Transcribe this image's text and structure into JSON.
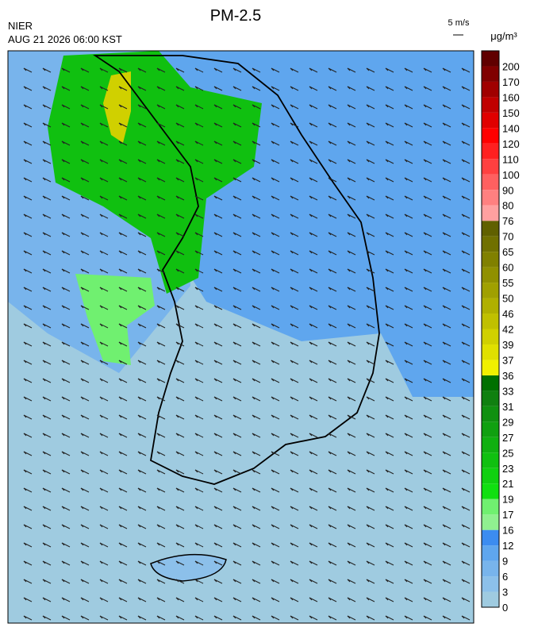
{
  "header": {
    "title": "PM-2.5",
    "agency": "NIER",
    "timestamp": "AUG 21 2026 06:00 KST",
    "wind_scale": "5 m/s",
    "unit": "μg/m³"
  },
  "colorbar": [
    {
      "value": 0,
      "color": "#9fcbe0"
    },
    {
      "value": 3,
      "color": "#8cc0ea"
    },
    {
      "value": 6,
      "color": "#78b4ec"
    },
    {
      "value": 9,
      "color": "#5fa6ee"
    },
    {
      "value": 12,
      "color": "#3c8cf0"
    },
    {
      "value": 16,
      "color": "#90f090"
    },
    {
      "value": 17,
      "color": "#70f070"
    },
    {
      "value": 19,
      "color": "#10e010"
    },
    {
      "value": 21,
      "color": "#10d010"
    },
    {
      "value": 23,
      "color": "#10c010"
    },
    {
      "value": 25,
      "color": "#10b010"
    },
    {
      "value": 27,
      "color": "#10a010"
    },
    {
      "value": 29,
      "color": "#109010"
    },
    {
      "value": 31,
      "color": "#108010"
    },
    {
      "value": 33,
      "color": "#007000"
    },
    {
      "value": 36,
      "color": "#f0f000"
    },
    {
      "value": 37,
      "color": "#e0e000"
    },
    {
      "value": 39,
      "color": "#d0d000"
    },
    {
      "value": 42,
      "color": "#c0c000"
    },
    {
      "value": 46,
      "color": "#b0b000"
    },
    {
      "value": 50,
      "color": "#a0a000"
    },
    {
      "value": 55,
      "color": "#909000"
    },
    {
      "value": 60,
      "color": "#808000"
    },
    {
      "value": 65,
      "color": "#707000"
    },
    {
      "value": 70,
      "color": "#606000"
    },
    {
      "value": 76,
      "color": "#ffa0a0"
    },
    {
      "value": 80,
      "color": "#ff8080"
    },
    {
      "value": 90,
      "color": "#ff6060"
    },
    {
      "value": 100,
      "color": "#ff4040"
    },
    {
      "value": 110,
      "color": "#ff2020"
    },
    {
      "value": 120,
      "color": "#ff0000"
    },
    {
      "value": 140,
      "color": "#e00000"
    },
    {
      "value": 150,
      "color": "#c00000"
    },
    {
      "value": 160,
      "color": "#a00000"
    },
    {
      "value": 170,
      "color": "#800000"
    },
    {
      "value": 200,
      "color": "#600000"
    }
  ]
}
